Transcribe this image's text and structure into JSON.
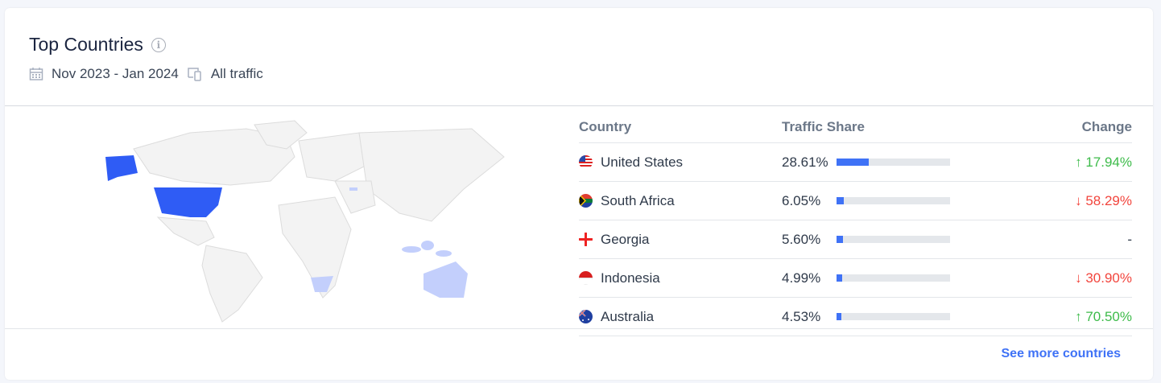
{
  "header": {
    "title": "Top Countries",
    "date_range": "Nov 2023 - Jan 2024",
    "traffic_type": "All traffic"
  },
  "table": {
    "columns": [
      "Country",
      "Traffic Share",
      "Change"
    ],
    "rows": [
      {
        "country": "United States",
        "share": "28.61%",
        "share_value": 28.61,
        "change": "↑ 17.94%",
        "direction": "up"
      },
      {
        "country": "South Africa",
        "share": "6.05%",
        "share_value": 6.05,
        "change": "↓ 58.29%",
        "direction": "down"
      },
      {
        "country": "Georgia",
        "share": "5.60%",
        "share_value": 5.6,
        "change": "-",
        "direction": "none"
      },
      {
        "country": "Indonesia",
        "share": "4.99%",
        "share_value": 4.99,
        "change": "↓ 30.90%",
        "direction": "down"
      },
      {
        "country": "Australia",
        "share": "4.53%",
        "share_value": 4.53,
        "change": "↑ 70.50%",
        "direction": "up"
      }
    ]
  },
  "map": {
    "highlight_primary": "#2f5cf5",
    "highlight_secondary": "#c3cffc",
    "land": "#f3f3f3"
  },
  "footer": {
    "see_more": "See more countries"
  }
}
